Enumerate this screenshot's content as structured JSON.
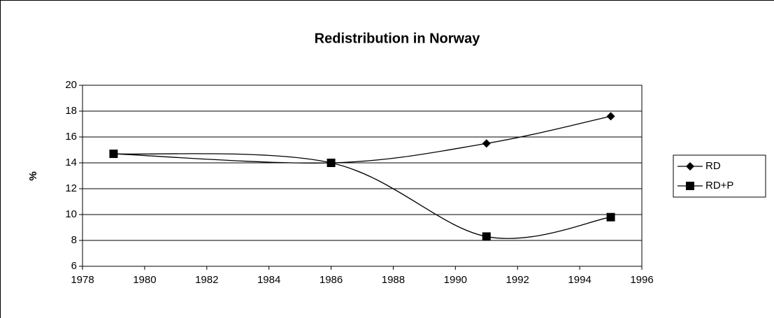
{
  "chart_data": {
    "type": "line",
    "title": "Redistribution in Norway",
    "ylabel": "%",
    "x": [
      1979,
      1986,
      1991,
      1995
    ],
    "series": [
      {
        "name": "RD",
        "color": "#000000",
        "marker": "diamond",
        "values": [
          14.7,
          14.0,
          15.5,
          17.6
        ]
      },
      {
        "name": "RD+P",
        "color": "#000000",
        "marker": "square",
        "values": [
          14.7,
          14.0,
          8.3,
          9.8
        ]
      }
    ],
    "xlim": [
      1978,
      1996
    ],
    "xticks": [
      1978,
      1980,
      1982,
      1984,
      1986,
      1988,
      1990,
      1992,
      1994,
      1996
    ],
    "ylim": [
      6,
      20
    ],
    "yticks": [
      6,
      8,
      10,
      12,
      14,
      16,
      18,
      20
    ],
    "grid": true,
    "smooth": true,
    "legend": "right"
  }
}
